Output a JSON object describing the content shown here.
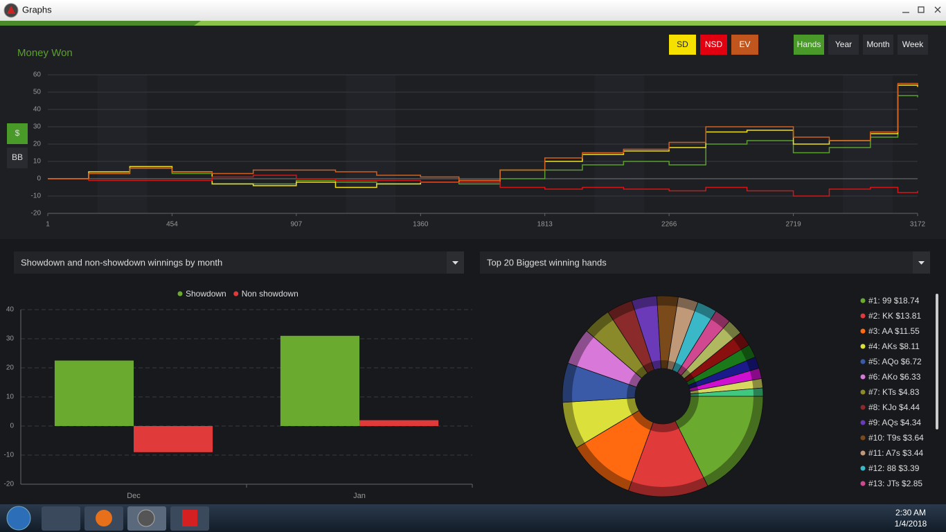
{
  "window": {
    "title": "Graphs"
  },
  "controls": {
    "period": [
      "Hands",
      "Year",
      "Month",
      "Week"
    ],
    "units": [
      "$",
      "BB"
    ]
  },
  "dropdowns": [
    "Showdown and non-showdown winnings by month",
    "Top 20 Biggest winning hands"
  ],
  "taskbar": {
    "time": "2:30 AM",
    "date": "1/4/2018"
  },
  "chart_data": [
    {
      "type": "line",
      "title": "Money Won",
      "x": [
        1,
        150,
        300,
        454,
        600,
        750,
        907,
        1050,
        1200,
        1360,
        1500,
        1650,
        1813,
        1950,
        2100,
        2266,
        2400,
        2550,
        2719,
        2850,
        3000,
        3100,
        3172
      ],
      "xlim": [
        1,
        3172
      ],
      "xticks": [
        1,
        454,
        907,
        1360,
        1813,
        2266,
        2719,
        3172
      ],
      "ylim": [
        -20,
        60
      ],
      "yticks": [
        -20,
        -10,
        0,
        10,
        20,
        30,
        40,
        50,
        60
      ],
      "grid": true,
      "series": [
        {
          "color": "#5aa02c",
          "values": [
            0,
            3,
            7,
            3,
            -3,
            -3,
            -1,
            -2,
            -3,
            -2,
            -3,
            0,
            5,
            8,
            10,
            8,
            20,
            22,
            15,
            18,
            24,
            48,
            47
          ]
        },
        {
          "name": "SD",
          "color": "#f0e020",
          "values": [
            0,
            4,
            7,
            4,
            -3,
            -4,
            -2,
            -5,
            -3,
            -2,
            -1,
            5,
            10,
            14,
            16,
            18,
            27,
            28,
            20,
            22,
            26,
            54,
            53
          ]
        },
        {
          "name": "NSD",
          "color": "#d01818",
          "values": [
            0,
            -1,
            -1,
            -1,
            1,
            2,
            0,
            -1,
            -1,
            -2,
            -2,
            -5,
            -6,
            -5,
            -6,
            -7,
            -5,
            -7,
            -10,
            -6,
            -5,
            -8,
            -7
          ]
        },
        {
          "name": "EV",
          "color": "#d06020",
          "values": [
            0,
            3,
            6,
            4,
            3,
            5,
            5,
            4,
            2,
            1,
            -1,
            5,
            12,
            15,
            17,
            21,
            30,
            30,
            24,
            22,
            27,
            55,
            54
          ]
        }
      ]
    },
    {
      "type": "bar",
      "categories": [
        "Dec",
        "Jan"
      ],
      "ylim": [
        -20,
        40
      ],
      "yticks": [
        -20,
        -10,
        0,
        10,
        20,
        30,
        40
      ],
      "grid": true,
      "series": [
        {
          "name": "Showdown",
          "color": "#6aaa2e",
          "values": [
            22.5,
            31
          ]
        },
        {
          "name": "Non showdown",
          "color": "#e03a3a",
          "values": [
            -9,
            2
          ]
        }
      ]
    },
    {
      "type": "pie",
      "categories": [
        "#1: 99 $18.74",
        "#2: KK $13.81",
        "#3: AA $11.55",
        "#4: AKs $8.11",
        "#5: AQo $6.72",
        "#6: AKo $6.33",
        "#7: KTs $4.83",
        "#8: KJo $4.44",
        "#9: AQs $4.34",
        "#10: T9s $3.64",
        "#11: A7s $3.44",
        "#12: 88 $3.39",
        "#13: JTs $2.85",
        null,
        null,
        null,
        null,
        null,
        null,
        null
      ],
      "values": [
        18.74,
        13.81,
        11.55,
        8.11,
        6.72,
        6.33,
        4.83,
        4.44,
        4.34,
        3.64,
        3.44,
        3.39,
        2.85,
        2.7,
        2.5,
        2.3,
        2.0,
        1.8,
        1.6,
        1.4
      ],
      "colors": [
        "#6aaa2e",
        "#e03a3a",
        "#ff6a10",
        "#dce03a",
        "#3a5aa8",
        "#d878d8",
        "#8a8a2a",
        "#8a2a2a",
        "#6a3ab8",
        "#7a4a1a",
        "#c09a78",
        "#3ab8c8",
        "#d04890",
        "#b0b860",
        "#8a1010",
        "#1a7a1a",
        "#1a1a8a",
        "#d010d0",
        "#d8d860",
        "#40c880"
      ]
    }
  ]
}
